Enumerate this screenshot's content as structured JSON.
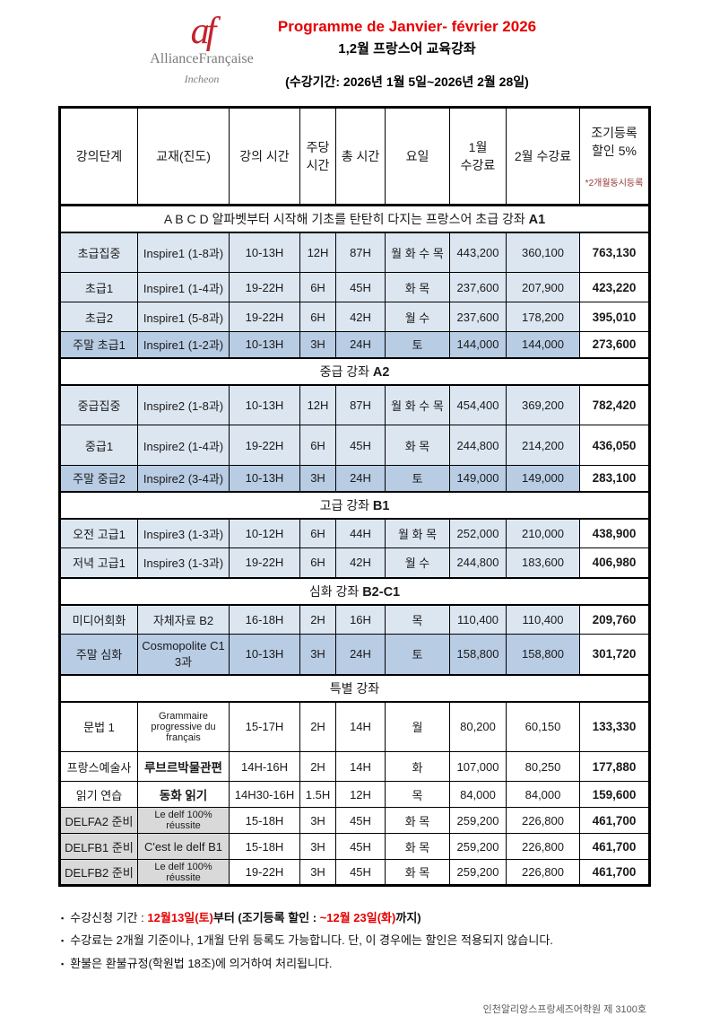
{
  "palette": {
    "title_red": "#e60000",
    "logo_red": "#c4222e",
    "row_light_blue": "#dce6f1",
    "row_medium_blue": "#b8cce4",
    "row_gray": "#d9d9d9",
    "note_dark_red": "#963634",
    "footer_gray": "#595959"
  },
  "header": {
    "logo": {
      "mark": "af",
      "name": "AllianceFrançaise",
      "city": "Incheon"
    },
    "title_fr": "Programme de Janvier- février 2026",
    "title_ko": "1,2월 프랑스어 교육강좌",
    "period": "(수강기간: 2026년 1월 5일~2026년 2월 28일)"
  },
  "table": {
    "columns": [
      "강의단계",
      "교재(진도)",
      "강의 시간",
      "주당\n시간",
      "총 시간",
      "요일",
      "1월\n수강료",
      "2월 수강료"
    ],
    "discount_header": {
      "label": "조기등록\n할인 5%",
      "note": "*2개월동시등록"
    },
    "sections": [
      {
        "title": "A B C D 알파벳부터 시작해 기초를 탄탄히 다지는 프랑스어 초급 강좌",
        "level": "A1",
        "rows": [
          {
            "style": "blue",
            "size": "lg",
            "cells": [
              "초급집중",
              "Inspire1 (1-8과)",
              "10-13H",
              "12H",
              "87H",
              "월 화 수 목",
              "443,200",
              "360,100",
              "763,130"
            ]
          },
          {
            "style": "blue",
            "size": "md",
            "cells": [
              "초급1",
              "Inspire1 (1-4과)",
              "19-22H",
              "6H",
              "45H",
              "화 목",
              "237,600",
              "207,900",
              "423,220"
            ]
          },
          {
            "style": "blue",
            "size": "md",
            "cells": [
              "초급2",
              "Inspire1 (5-8과)",
              "19-22H",
              "6H",
              "42H",
              "월 수",
              "237,600",
              "178,200",
              "395,010"
            ]
          },
          {
            "style": "weekend",
            "size": "sm",
            "cells": [
              "주말 초급1",
              "Inspire1 (1-2과)",
              "10-13H",
              "3H",
              "24H",
              "토",
              "144,000",
              "144,000",
              "273,600"
            ]
          }
        ]
      },
      {
        "title": "중급 강좌",
        "level": "A2",
        "rows": [
          {
            "style": "blue",
            "size": "lg",
            "cells": [
              "중급집중",
              "Inspire2 (1-8과)",
              "10-13H",
              "12H",
              "87H",
              "월 화 수 목",
              "454,400",
              "369,200",
              "782,420"
            ]
          },
          {
            "style": "blue",
            "size": "lg",
            "cells": [
              "중급1",
              "Inspire2 (1-4과)",
              "19-22H",
              "6H",
              "45H",
              "화 목",
              "244,800",
              "214,200",
              "436,050"
            ]
          },
          {
            "style": "weekend",
            "size": "sm",
            "cells": [
              "주말 중급2",
              "Inspire2 (3-4과)",
              "10-13H",
              "3H",
              "24H",
              "토",
              "149,000",
              "149,000",
              "283,100"
            ]
          }
        ]
      },
      {
        "title": "고급 강좌",
        "level": "B1",
        "rows": [
          {
            "style": "blue",
            "size": "md",
            "cells": [
              "오전 고급1",
              "Inspire3 (1-3과)",
              "10-12H",
              "6H",
              "44H",
              "월 화 목",
              "252,000",
              "210,000",
              "438,900"
            ]
          },
          {
            "style": "blue",
            "size": "md",
            "cells": [
              "저녁 고급1",
              "Inspire3 (1-3과)",
              "19-22H",
              "6H",
              "42H",
              "월 수",
              "244,800",
              "183,600",
              "406,980"
            ]
          }
        ]
      },
      {
        "title": "심화 강좌",
        "level": "B2-C1",
        "rows": [
          {
            "style": "blue",
            "size": "md",
            "cells": [
              "미디어회화",
              "자체자료 B2",
              "16-18H",
              "2H",
              "16H",
              "목",
              "110,400",
              "110,400",
              "209,760"
            ]
          },
          {
            "style": "weekend",
            "size": "lg",
            "cells": [
              "주말 심화",
              "Cosmopolite C1\n3과",
              "10-13H",
              "3H",
              "24H",
              "토",
              "158,800",
              "158,800",
              "301,720"
            ]
          }
        ]
      },
      {
        "title": "특별 강좌",
        "level": "",
        "rows": [
          {
            "style": "plain",
            "size": "xl",
            "book_small": true,
            "cells": [
              "문법 1",
              "Grammaire progressive du français",
              "15-17H",
              "2H",
              "14H",
              "월",
              "80,200",
              "60,150",
              "133,330"
            ]
          },
          {
            "style": "plain",
            "size": "md",
            "book_bold": true,
            "cells": [
              "프랑스예술사",
              "루브르박물관편",
              "14H-16H",
              "2H",
              "14H",
              "화",
              "107,000",
              "80,250",
              "177,880"
            ]
          },
          {
            "style": "plain",
            "size": "sm",
            "book_bold": true,
            "cells": [
              "읽기 연습",
              "동화 읽기",
              "14H30-16H",
              "1.5H",
              "12H",
              "목",
              "84,000",
              "84,000",
              "159,600"
            ]
          },
          {
            "style": "delf",
            "size": "sm",
            "book_small": true,
            "cells": [
              "DELFA2 준비",
              "Le delf 100% réussite",
              "15-18H",
              "3H",
              "45H",
              "화 목",
              "259,200",
              "226,800",
              "461,700"
            ]
          },
          {
            "style": "delf",
            "size": "sm",
            "cells": [
              "DELFB1 준비",
              "C'est le delf B1",
              "15-18H",
              "3H",
              "45H",
              "화 목",
              "259,200",
              "226,800",
              "461,700"
            ]
          },
          {
            "style": "delf",
            "size": "sm",
            "book_small": true,
            "cells": [
              "DELFB2 준비",
              "Le delf 100% réussite",
              "19-22H",
              "3H",
              "45H",
              "화 목",
              "259,200",
              "226,800",
              "461,700"
            ]
          }
        ]
      }
    ]
  },
  "footer": {
    "bullet": "▪",
    "notes": [
      {
        "segments": [
          {
            "text": "수강신청 기간 : "
          },
          {
            "text": "12월13일(토)",
            "red": true,
            "bold": true
          },
          {
            "text": "부터 (조기등록 할인 : ",
            "bold": true
          },
          {
            "text": "~12월 23일(화)",
            "red": true,
            "bold": true
          },
          {
            "text": "까지)",
            "bold": true
          }
        ]
      },
      {
        "segments": [
          {
            "text": "수강료는 2개월 기준이나, 1개월 단위 등록도 가능합니다. 단, 이 경우에는 할인은 적용되지 않습니다."
          }
        ]
      },
      {
        "segments": [
          {
            "text": "환불은 환불규정(학원법 18조)에 의거하여 처리됩니다."
          }
        ]
      }
    ],
    "registration": "인천알리앙스프랑세즈어학원 제 3100호"
  }
}
